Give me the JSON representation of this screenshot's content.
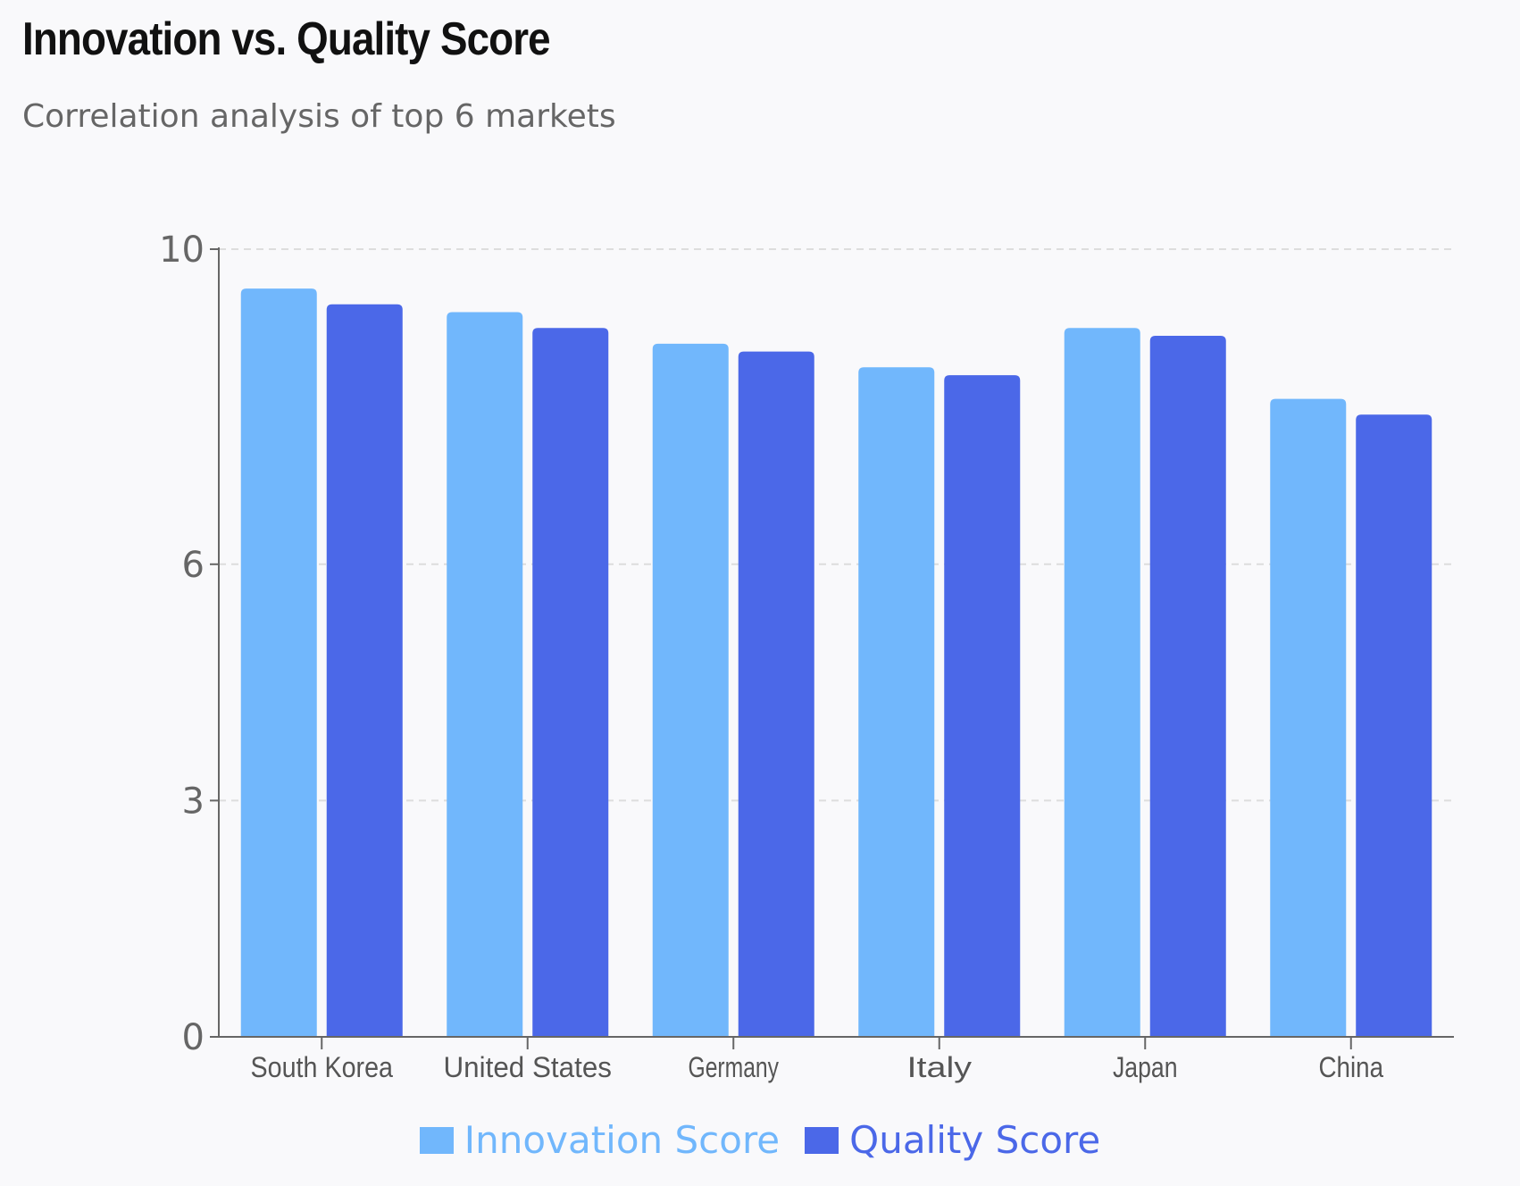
{
  "header": {
    "title": "Innovation vs. Quality Score",
    "subtitle": "Correlation analysis of top 6 markets"
  },
  "colors": {
    "innovation": "#71b7fc",
    "quality": "#4b68e8",
    "axis": "#666666",
    "grid": "#dddddd"
  },
  "chart_data": {
    "type": "bar",
    "title": "Innovation vs. Quality Score",
    "subtitle": "Correlation analysis of top 6 markets",
    "categories": [
      "South Korea",
      "United States",
      "Germany",
      "Italy",
      "Japan",
      "China"
    ],
    "series": [
      {
        "name": "Innovation Score",
        "color": "#71b7fc",
        "values": [
          9.5,
          9.2,
          8.8,
          8.5,
          9.0,
          8.1
        ]
      },
      {
        "name": "Quality Score",
        "color": "#4b68e8",
        "values": [
          9.3,
          9.0,
          8.7,
          8.4,
          8.9,
          7.9
        ]
      }
    ],
    "yticks": [
      0,
      3,
      6,
      10
    ],
    "ylim": [
      0,
      10
    ],
    "xlabel": "",
    "ylabel": "",
    "grid": true,
    "legend": "bottom-center"
  }
}
